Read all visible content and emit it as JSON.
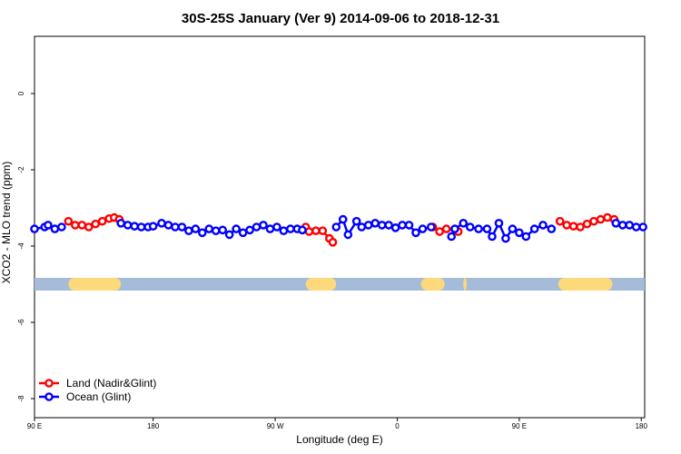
{
  "chart_data": {
    "type": "scatter",
    "title": "30S-25S January (Ver 9)   2014-09-06 to 2018-12-31",
    "xlabel": "Longitude (deg E)",
    "ylabel": "XCO2 - MLO trend (ppm)",
    "xlim": [
      90,
      450
    ],
    "ylim": [
      -8.5,
      1.5
    ],
    "x_ticks": [
      {
        "value": 90,
        "label": "90 E"
      },
      {
        "value": 160,
        "label": "180"
      },
      {
        "value": 232,
        "label": "90 W"
      },
      {
        "value": 304,
        "label": "0"
      },
      {
        "value": 376,
        "label": "90 E"
      },
      {
        "value": 448,
        "label": "180"
      }
    ],
    "y_ticks": [
      {
        "value": 0,
        "label": "0"
      },
      {
        "value": -2,
        "label": "-2"
      },
      {
        "value": -4,
        "label": "-4"
      },
      {
        "value": -6,
        "label": "-6"
      },
      {
        "value": -8,
        "label": "-8"
      }
    ],
    "land_band": {
      "y": -5.0,
      "color_ocean": "#a4bbd9",
      "color_land": "#fcd97a",
      "land_ranges": [
        [
          110,
          141
        ],
        [
          250,
          268
        ],
        [
          318,
          332
        ],
        [
          343,
          345
        ],
        [
          399,
          431
        ]
      ]
    },
    "series": [
      {
        "name": "Land (Nadir&Glint)",
        "color": "#ff0000",
        "x": [
          110,
          114,
          118,
          122,
          126,
          130,
          134,
          137,
          140,
          250,
          252,
          256,
          260,
          264,
          266,
          325,
          329,
          333,
          340,
          400,
          404,
          408,
          412,
          416,
          420,
          424,
          428,
          432
        ],
        "y": [
          -3.35,
          -3.45,
          -3.45,
          -3.5,
          -3.42,
          -3.35,
          -3.28,
          -3.25,
          -3.3,
          -3.5,
          -3.62,
          -3.6,
          -3.6,
          -3.8,
          -3.9,
          -3.5,
          -3.62,
          -3.55,
          -3.62,
          -3.35,
          -3.45,
          -3.48,
          -3.5,
          -3.42,
          -3.35,
          -3.3,
          -3.25,
          -3.3
        ]
      },
      {
        "name": "Ocean (Glint)",
        "color": "#0000ff",
        "x": [
          90,
          96,
          98,
          102,
          106,
          141,
          145,
          149,
          153,
          157,
          160,
          165,
          169,
          173,
          177,
          181,
          185,
          189,
          193,
          197,
          201,
          205,
          209,
          213,
          217,
          221,
          225,
          229,
          233,
          237,
          241,
          245,
          248,
          268,
          272,
          275,
          280,
          283,
          287,
          291,
          295,
          299,
          303,
          307,
          311,
          315,
          319,
          324,
          336,
          338,
          343,
          347,
          352,
          357,
          360,
          364,
          368,
          372,
          376,
          380,
          385,
          390,
          395,
          433,
          437,
          441,
          445,
          449
        ],
        "y": [
          -3.55,
          -3.5,
          -3.45,
          -3.55,
          -3.5,
          -3.4,
          -3.45,
          -3.48,
          -3.5,
          -3.5,
          -3.48,
          -3.4,
          -3.45,
          -3.5,
          -3.5,
          -3.6,
          -3.55,
          -3.65,
          -3.55,
          -3.6,
          -3.58,
          -3.7,
          -3.55,
          -3.65,
          -3.58,
          -3.5,
          -3.45,
          -3.55,
          -3.5,
          -3.6,
          -3.55,
          -3.55,
          -3.58,
          -3.5,
          -3.3,
          -3.7,
          -3.35,
          -3.5,
          -3.45,
          -3.4,
          -3.45,
          -3.45,
          -3.52,
          -3.45,
          -3.45,
          -3.65,
          -3.55,
          -3.5,
          -3.75,
          -3.55,
          -3.4,
          -3.5,
          -3.55,
          -3.55,
          -3.75,
          -3.4,
          -3.8,
          -3.55,
          -3.65,
          -3.75,
          -3.55,
          -3.45,
          -3.55,
          -3.4,
          -3.45,
          -3.45,
          -3.5,
          -3.5
        ]
      }
    ],
    "legend": {
      "placement": "bottom-left"
    }
  }
}
